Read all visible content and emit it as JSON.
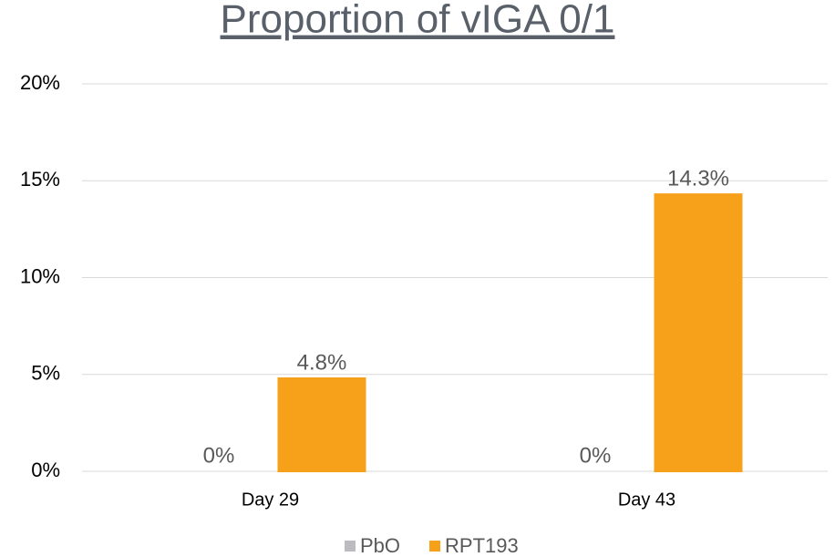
{
  "chart_data": {
    "type": "bar",
    "title": "Proportion of vIGA 0/1",
    "categories": [
      "Day 29",
      "Day 43"
    ],
    "series": [
      {
        "name": "PbO",
        "color": "#bcbcc0",
        "values": [
          0,
          0
        ],
        "value_labels": [
          "0%",
          "0%"
        ]
      },
      {
        "name": "RPT193",
        "color": "#f7a11a",
        "values": [
          4.8,
          14.3
        ],
        "value_labels": [
          "4.8%",
          "14.3%"
        ]
      }
    ],
    "ylim": [
      0,
      20
    ],
    "yticks": [
      {
        "value": 0,
        "label": "0%"
      },
      {
        "value": 5,
        "label": "5%"
      },
      {
        "value": 10,
        "label": "10%"
      },
      {
        "value": 15,
        "label": "15%"
      },
      {
        "value": 20,
        "label": "20%"
      }
    ],
    "grid": true,
    "legend": "bottom"
  }
}
